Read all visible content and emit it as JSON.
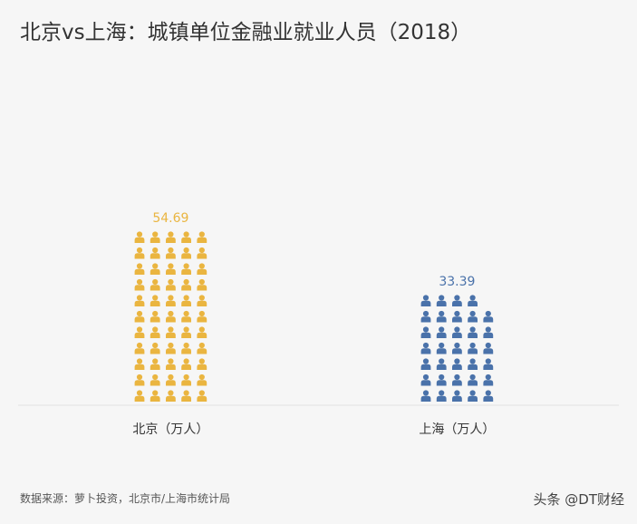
{
  "title": "北京vs上海：城镇单位金融业就业人员（2018）",
  "footer": {
    "source": "数据来源：萝卜投资，北京市/上海市统计局",
    "watermark": "头条 @DT财经"
  },
  "chart_data": {
    "type": "bar",
    "categories": [
      "北京（万人）",
      "上海（万人）"
    ],
    "values": [
      54.69,
      33.39
    ],
    "value_labels": [
      "54.69",
      "33.39"
    ],
    "colors": [
      "#eab540",
      "#4a72aa"
    ],
    "icon": "person-icon",
    "title": "北京vs上海：城镇单位金融业就业人员（2018）",
    "xlabel": "",
    "ylabel": "",
    "grid": false
  }
}
